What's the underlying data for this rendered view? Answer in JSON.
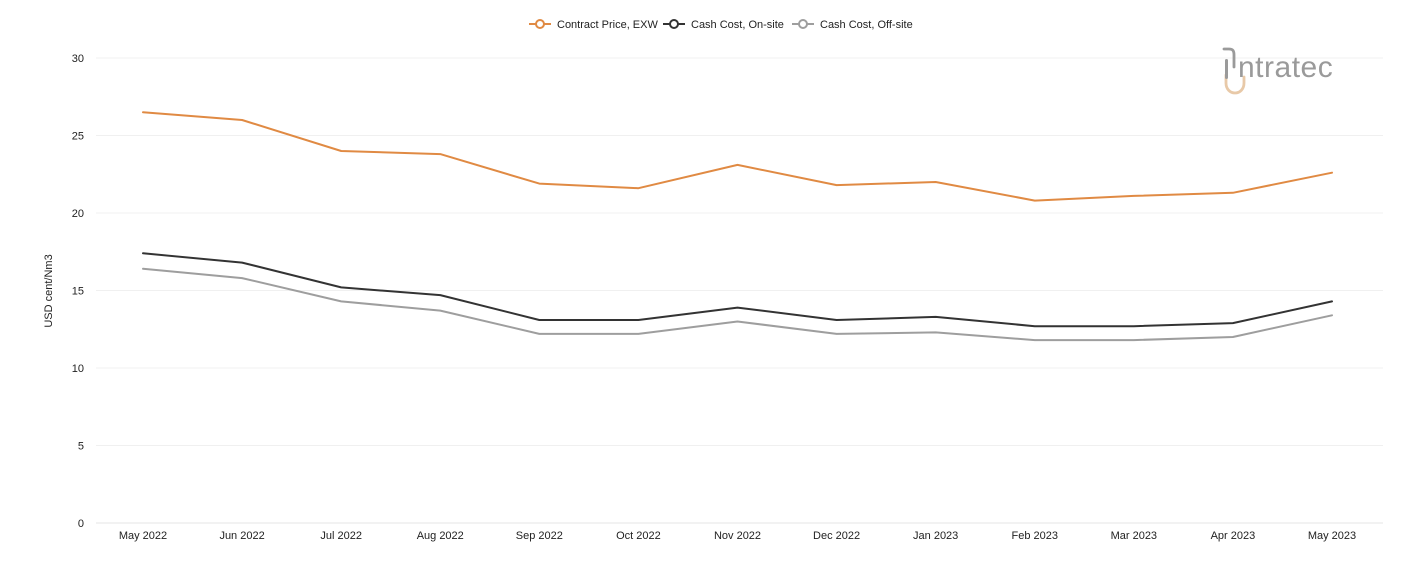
{
  "chart_data": {
    "type": "line",
    "title": "",
    "xlabel": "",
    "ylabel": "USD cent/Nm3",
    "ylim": [
      0,
      30
    ],
    "yticks": [
      0,
      5,
      10,
      15,
      20,
      25,
      30
    ],
    "grid": true,
    "legend_position": "top-center",
    "categories": [
      "May 2022",
      "Jun 2022",
      "Jul 2022",
      "Aug 2022",
      "Sep 2022",
      "Oct 2022",
      "Nov 2022",
      "Dec 2022",
      "Jan 2023",
      "Feb 2023",
      "Mar 2023",
      "Apr 2023",
      "May 2023"
    ],
    "series": [
      {
        "name": "Contract Price, EXW",
        "color": "#e08a43",
        "values": [
          26.5,
          26.0,
          24.0,
          23.8,
          21.9,
          21.6,
          23.1,
          21.8,
          22.0,
          20.8,
          21.1,
          21.3,
          22.6
        ]
      },
      {
        "name": "Cash Cost, On-site",
        "color": "#333333",
        "values": [
          17.4,
          16.8,
          15.2,
          14.7,
          13.1,
          13.1,
          13.9,
          13.1,
          13.3,
          12.7,
          12.7,
          12.9,
          14.3
        ]
      },
      {
        "name": "Cash Cost, Off-site",
        "color": "#9e9e9e",
        "values": [
          16.4,
          15.8,
          14.3,
          13.7,
          12.2,
          12.2,
          13.0,
          12.2,
          12.3,
          11.8,
          11.8,
          12.0,
          13.4
        ]
      }
    ]
  },
  "logo": {
    "text": "ntratec",
    "name": "intratec",
    "mark_color": "#9a9a9a",
    "accent_color": "#e8c9a8"
  }
}
